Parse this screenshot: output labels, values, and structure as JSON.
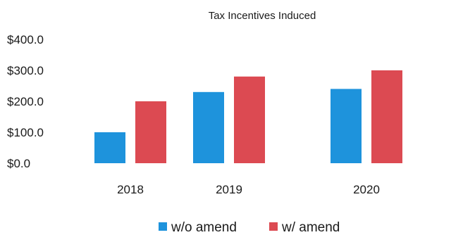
{
  "chart_data": {
    "type": "bar",
    "title": "Tax Incentives Induced",
    "xlabel": "",
    "ylabel": "",
    "categories": [
      "2018",
      "2019",
      "2020"
    ],
    "series": [
      {
        "name": "w/o amend",
        "values": [
          100,
          230,
          240
        ],
        "color": "#1e93dc"
      },
      {
        "name": "w/ amend",
        "values": [
          200,
          280,
          300
        ],
        "color": "#dc4a52"
      }
    ],
    "ylim": [
      0,
      400
    ],
    "yticks": [
      "$0.0",
      "$100.0",
      "$200.0",
      "$300.0",
      "$400.0"
    ],
    "grid": false,
    "legend": "bottom"
  }
}
